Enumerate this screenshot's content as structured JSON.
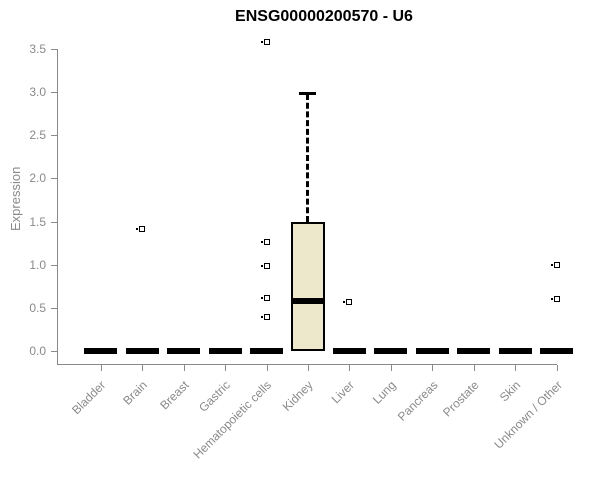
{
  "chart_data": {
    "type": "boxplot",
    "title": "ENSG00000200570 - U6",
    "xlabel": "",
    "ylabel": "Expression",
    "ylim": [
      0.0,
      3.5
    ],
    "yticks": [
      "0.0",
      "0.5",
      "1.0",
      "1.5",
      "2.0",
      "2.5",
      "3.0",
      "3.5"
    ],
    "grid": false,
    "legend": false,
    "categories": [
      "Bladder",
      "Brain",
      "Breast",
      "Gastric",
      "Hematopoietic cells",
      "Kidney",
      "Liver",
      "Lung",
      "Pancreas",
      "Prostate",
      "Skin",
      "Unknown / Other"
    ],
    "boxes": [
      {
        "category": "Bladder",
        "q1": 0,
        "median": 0,
        "q3": 0,
        "whisker_low": 0,
        "whisker_high": 0,
        "outliers": []
      },
      {
        "category": "Brain",
        "q1": 0,
        "median": 0,
        "q3": 0,
        "whisker_low": 0,
        "whisker_high": 0,
        "outliers": [
          1.41
        ]
      },
      {
        "category": "Breast",
        "q1": 0,
        "median": 0,
        "q3": 0,
        "whisker_low": 0,
        "whisker_high": 0,
        "outliers": []
      },
      {
        "category": "Gastric",
        "q1": 0,
        "median": 0,
        "q3": 0,
        "whisker_low": 0,
        "whisker_high": 0,
        "outliers": []
      },
      {
        "category": "Hematopoietic cells",
        "q1": 0,
        "median": 0,
        "q3": 0,
        "whisker_low": 0,
        "whisker_high": 0,
        "outliers": [
          3.58,
          1.26,
          0.98,
          0.61,
          0.39
        ]
      },
      {
        "category": "Kidney",
        "q1": 0,
        "median": 0.58,
        "q3": 1.5,
        "whisker_low": 0,
        "whisker_high": 3.0,
        "outliers": []
      },
      {
        "category": "Liver",
        "q1": 0,
        "median": 0,
        "q3": 0,
        "whisker_low": 0,
        "whisker_high": 0,
        "outliers": [
          0.57
        ]
      },
      {
        "category": "Lung",
        "q1": 0,
        "median": 0,
        "q3": 0,
        "whisker_low": 0,
        "whisker_high": 0,
        "outliers": []
      },
      {
        "category": "Pancreas",
        "q1": 0,
        "median": 0,
        "q3": 0,
        "whisker_low": 0,
        "whisker_high": 0,
        "outliers": []
      },
      {
        "category": "Prostate",
        "q1": 0,
        "median": 0,
        "q3": 0,
        "whisker_low": 0,
        "whisker_high": 0,
        "outliers": []
      },
      {
        "category": "Skin",
        "q1": 0,
        "median": 0,
        "q3": 0,
        "whisker_low": 0,
        "whisker_high": 0,
        "outliers": []
      },
      {
        "category": "Unknown / Other",
        "q1": 0,
        "median": 0,
        "q3": 0,
        "whisker_low": 0,
        "whisker_high": 0,
        "outliers": [
          1.0,
          0.6
        ]
      }
    ],
    "colors": {
      "box_fill": "#EDE8CC",
      "box_stroke": "#000000",
      "median": "#000000",
      "whisker": "#000000",
      "outlier": "#000000",
      "axis": "#898989",
      "tick_label": "#8a8a8a",
      "title": "#000000"
    }
  }
}
